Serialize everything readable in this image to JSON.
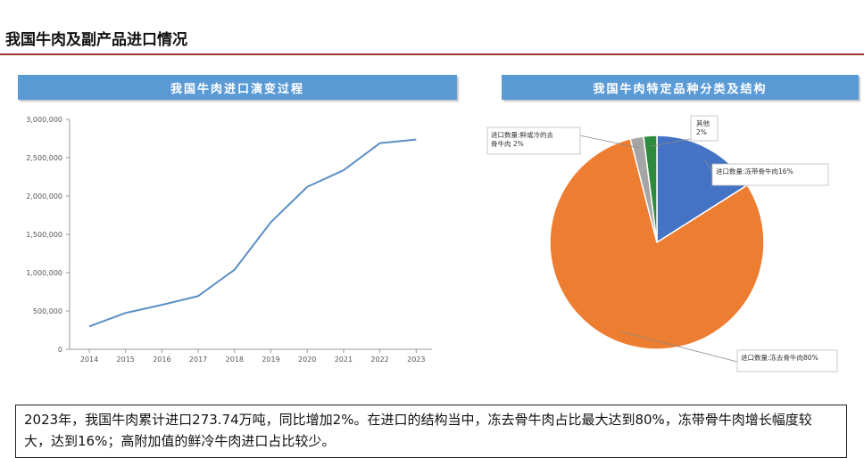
{
  "page": {
    "title": "我国牛肉及副产品进口情况",
    "summary": "2023年，我国牛肉累计进口273.74万吨，同比增加2%。在进口的结构当中，冻去骨牛肉占比最大达到80%，冻带骨牛肉增长幅度较大，达到16%；高附加值的鲜冷牛肉进口占比较少。"
  },
  "colors": {
    "banner": "#5b9bd5",
    "line": "#5b8fc4",
    "title_rule": "#a0342e"
  },
  "chart_data": [
    {
      "type": "line",
      "title": "我国牛肉进口演变过程",
      "x": [
        "2014",
        "2015",
        "2016",
        "2017",
        "2018",
        "2019",
        "2020",
        "2021",
        "2022",
        "2023"
      ],
      "series": [
        {
          "values": [
            298000,
            474000,
            580000,
            695000,
            1039000,
            1659000,
            2119000,
            2337000,
            2690000,
            2737400
          ]
        }
      ],
      "y_ticks": [
        "0",
        "500,000",
        "1,000,000",
        "1,500,000",
        "2,000,000",
        "2,500,000",
        "3,000,000"
      ],
      "ylim": [
        0,
        3000000
      ],
      "grid": false
    },
    {
      "type": "pie",
      "title": "我国牛肉特定品种分类及结构",
      "slices": [
        {
          "label": "进口数量:冻带骨牛肉16%",
          "value": 16,
          "color": "#4472c4"
        },
        {
          "label": "进口数量:冻去骨牛肉80%",
          "value": 80,
          "color": "#ed7d31"
        },
        {
          "label": "进口数量:鲜或冷的去骨牛肉 2%",
          "value": 2,
          "color": "#a5a5a5"
        },
        {
          "label": "其他 2%",
          "value": 2,
          "color": "#2e8b3e"
        }
      ]
    }
  ]
}
